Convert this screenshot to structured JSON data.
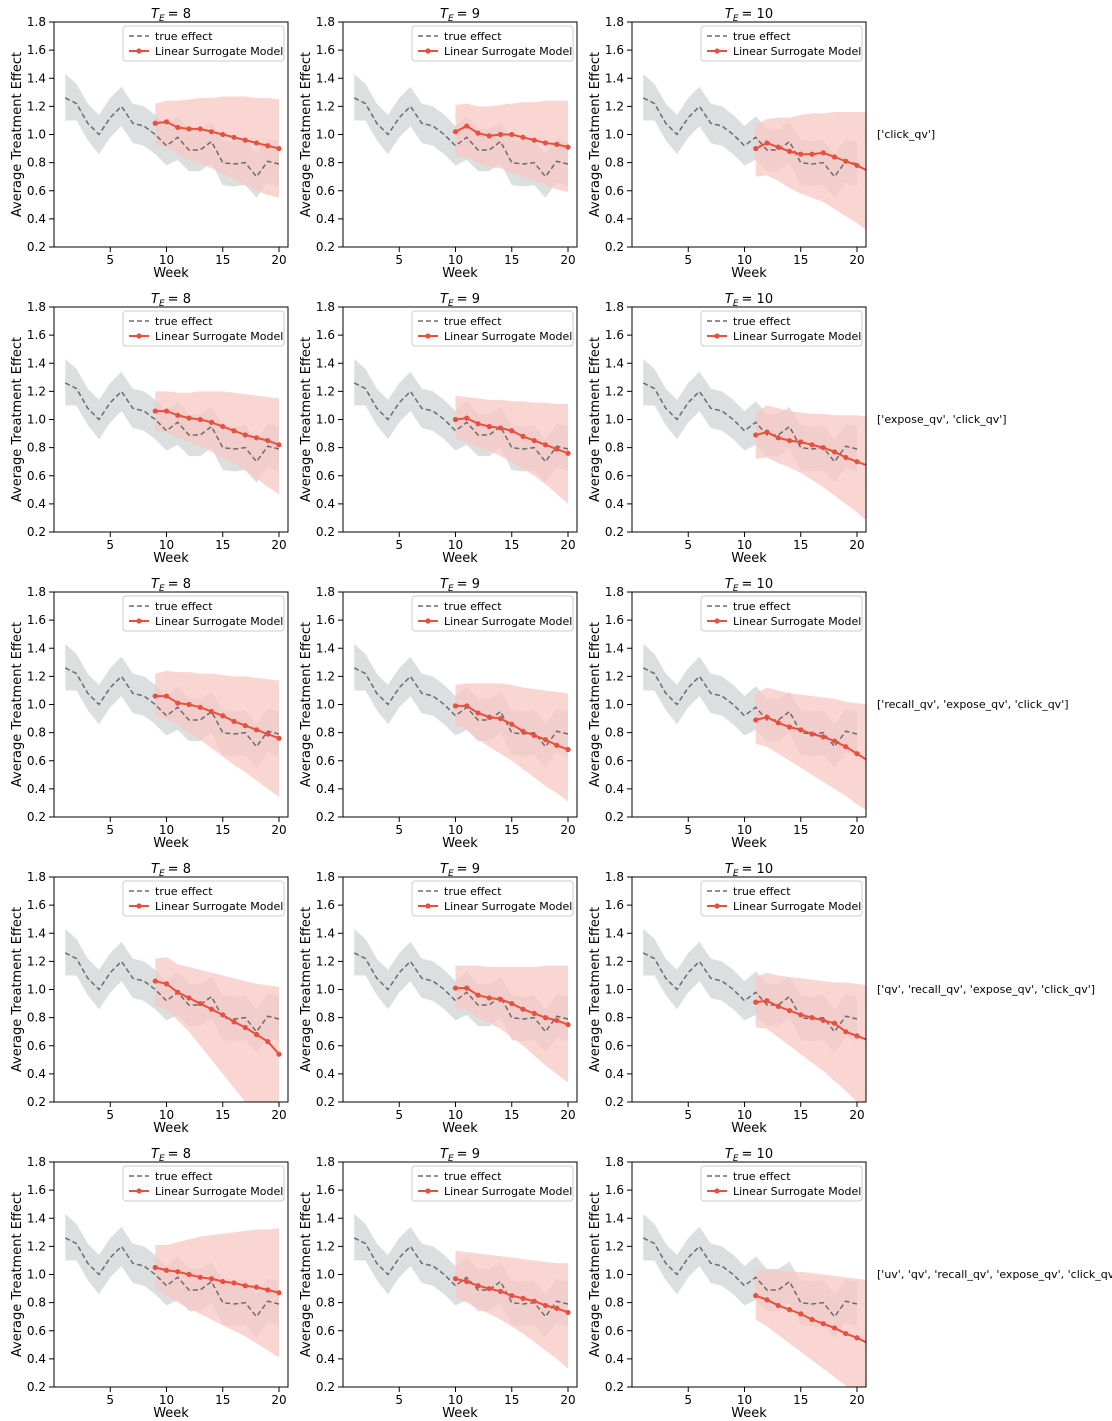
{
  "colors": {
    "true_effect_line": "#6b6b6b",
    "true_effect_band": "#d5d9db",
    "model_line": "#e8503e",
    "model_band": "#f8c8c4",
    "axis": "#000000"
  },
  "chart_data": {
    "type": "line",
    "layout": "5 rows x 3 columns grid of small multiples",
    "xlabel": "Week",
    "ylabel": "Average Treatment Effect",
    "xticks": [
      5,
      10,
      15,
      20
    ],
    "xlim": [
      0,
      20.8
    ],
    "ylim": [
      0.2,
      1.8
    ],
    "yticks": [
      "0.2",
      "0.4",
      "0.6",
      "0.8",
      "1.0",
      "1.2",
      "1.4",
      "1.6",
      "1.8"
    ],
    "legend": {
      "position": "top-right",
      "entries": [
        "true effect",
        "Linear Surrogate Model"
      ]
    },
    "columns": [
      {
        "title_prefix": "T",
        "title_sub": "E",
        "title_value": "= 8",
        "t_e": 8
      },
      {
        "title_prefix": "T",
        "title_sub": "E",
        "title_value": "= 9",
        "t_e": 9
      },
      {
        "title_prefix": "T",
        "title_sub": "E",
        "title_value": "= 10",
        "t_e": 10
      }
    ],
    "true_effect": {
      "name": "true effect",
      "x": [
        1,
        2,
        3,
        4,
        5,
        6,
        7,
        8,
        9,
        10,
        11,
        12,
        13,
        14,
        15,
        16,
        17,
        18,
        19,
        20
      ],
      "y": [
        1.26,
        1.22,
        1.08,
        1.0,
        1.12,
        1.2,
        1.08,
        1.06,
        1.0,
        0.92,
        0.98,
        0.89,
        0.89,
        0.95,
        0.8,
        0.79,
        0.8,
        0.7,
        0.81,
        0.79
      ],
      "lower": [
        1.1,
        1.1,
        0.96,
        0.86,
        0.98,
        1.06,
        0.94,
        0.92,
        0.86,
        0.78,
        0.82,
        0.74,
        0.74,
        0.8,
        0.64,
        0.63,
        0.64,
        0.55,
        0.66,
        0.63
      ],
      "upper": [
        1.43,
        1.36,
        1.22,
        1.14,
        1.26,
        1.34,
        1.22,
        1.2,
        1.14,
        1.06,
        1.13,
        1.04,
        1.04,
        1.09,
        0.96,
        0.95,
        0.96,
        0.86,
        0.97,
        0.95
      ]
    },
    "rows": [
      {
        "label": "['click_qv']",
        "panels": [
          {
            "name": "Linear Surrogate Model",
            "x_start": 9,
            "y": [
              1.08,
              1.09,
              1.05,
              1.04,
              1.04,
              1.02,
              1.0,
              0.98,
              0.96,
              0.94,
              0.92,
              0.9
            ],
            "lower": [
              0.92,
              0.91,
              0.86,
              0.82,
              0.79,
              0.76,
              0.72,
              0.68,
              0.64,
              0.6,
              0.57,
              0.55
            ],
            "upper": [
              1.22,
              1.24,
              1.24,
              1.25,
              1.26,
              1.26,
              1.27,
              1.27,
              1.27,
              1.26,
              1.26,
              1.25
            ]
          },
          {
            "name": "Linear Surrogate Model",
            "x_start": 10,
            "y": [
              1.02,
              1.06,
              1.01,
              0.99,
              1.0,
              1.0,
              0.98,
              0.96,
              0.94,
              0.93,
              0.91
            ],
            "lower": [
              0.84,
              0.84,
              0.8,
              0.77,
              0.76,
              0.73,
              0.7,
              0.67,
              0.64,
              0.61,
              0.59
            ],
            "upper": [
              1.21,
              1.22,
              1.2,
              1.2,
              1.21,
              1.22,
              1.23,
              1.23,
              1.24,
              1.24,
              1.24
            ]
          },
          {
            "name": "Linear Surrogate Model",
            "x_start": 11,
            "y": [
              0.9,
              0.94,
              0.91,
              0.88,
              0.86,
              0.86,
              0.87,
              0.84,
              0.81,
              0.78,
              0.74
            ],
            "lower": [
              0.7,
              0.71,
              0.67,
              0.62,
              0.58,
              0.55,
              0.52,
              0.47,
              0.42,
              0.37,
              0.31
            ],
            "upper": [
              1.07,
              1.11,
              1.12,
              1.12,
              1.14,
              1.15,
              1.15,
              1.16,
              1.16,
              1.16,
              1.16
            ]
          }
        ]
      },
      {
        "label": "['expose_qv', 'click_qv']",
        "panels": [
          {
            "name": "Linear Surrogate Model",
            "x_start": 9,
            "y": [
              1.06,
              1.06,
              1.03,
              1.01,
              1.0,
              0.98,
              0.95,
              0.92,
              0.89,
              0.87,
              0.85,
              0.82
            ],
            "lower": [
              0.92,
              0.91,
              0.87,
              0.84,
              0.81,
              0.77,
              0.73,
              0.69,
              0.64,
              0.58,
              0.52,
              0.47
            ],
            "upper": [
              1.2,
              1.2,
              1.19,
              1.19,
              1.2,
              1.2,
              1.2,
              1.19,
              1.18,
              1.17,
              1.16,
              1.15
            ]
          },
          {
            "name": "Linear Surrogate Model",
            "x_start": 10,
            "y": [
              1.0,
              1.01,
              0.97,
              0.95,
              0.94,
              0.92,
              0.88,
              0.85,
              0.82,
              0.79,
              0.76
            ],
            "lower": [
              0.86,
              0.84,
              0.8,
              0.78,
              0.74,
              0.7,
              0.65,
              0.6,
              0.54,
              0.47,
              0.4
            ],
            "upper": [
              1.17,
              1.16,
              1.15,
              1.14,
              1.14,
              1.13,
              1.13,
              1.12,
              1.12,
              1.11,
              1.11
            ]
          },
          {
            "name": "Linear Surrogate Model",
            "x_start": 11,
            "y": [
              0.89,
              0.91,
              0.87,
              0.85,
              0.84,
              0.82,
              0.8,
              0.77,
              0.73,
              0.7,
              0.67
            ],
            "lower": [
              0.72,
              0.73,
              0.69,
              0.66,
              0.62,
              0.57,
              0.52,
              0.46,
              0.4,
              0.34,
              0.27
            ],
            "upper": [
              1.05,
              1.1,
              1.08,
              1.06,
              1.05,
              1.04,
              1.04,
              1.03,
              1.03,
              1.03,
              1.02
            ]
          }
        ]
      },
      {
        "label": "['recall_qv', 'expose_qv', 'click_qv']",
        "panels": [
          {
            "name": "Linear Surrogate Model",
            "x_start": 9,
            "y": [
              1.06,
              1.06,
              1.01,
              1.0,
              0.98,
              0.95,
              0.92,
              0.88,
              0.85,
              0.82,
              0.79,
              0.76
            ],
            "lower": [
              0.92,
              0.9,
              0.85,
              0.8,
              0.75,
              0.69,
              0.63,
              0.57,
              0.52,
              0.46,
              0.4,
              0.34
            ],
            "upper": [
              1.22,
              1.24,
              1.23,
              1.23,
              1.22,
              1.22,
              1.21,
              1.2,
              1.2,
              1.19,
              1.18,
              1.17
            ]
          },
          {
            "name": "Linear Surrogate Model",
            "x_start": 10,
            "y": [
              0.99,
              0.99,
              0.94,
              0.91,
              0.9,
              0.86,
              0.81,
              0.78,
              0.75,
              0.71,
              0.68
            ],
            "lower": [
              0.85,
              0.82,
              0.75,
              0.7,
              0.65,
              0.6,
              0.54,
              0.48,
              0.42,
              0.37,
              0.31
            ],
            "upper": [
              1.14,
              1.15,
              1.15,
              1.15,
              1.15,
              1.14,
              1.12,
              1.11,
              1.1,
              1.09,
              1.08
            ]
          },
          {
            "name": "Linear Surrogate Model",
            "x_start": 11,
            "y": [
              0.89,
              0.91,
              0.87,
              0.84,
              0.82,
              0.79,
              0.77,
              0.74,
              0.7,
              0.65,
              0.6
            ],
            "lower": [
              0.72,
              0.7,
              0.65,
              0.6,
              0.55,
              0.5,
              0.45,
              0.4,
              0.35,
              0.29,
              0.24
            ],
            "upper": [
              1.08,
              1.12,
              1.1,
              1.08,
              1.07,
              1.06,
              1.05,
              1.04,
              1.02,
              1.01,
              1.0
            ]
          }
        ]
      },
      {
        "label": "['qv', 'recall_qv', 'expose_qv', 'click_qv']",
        "panels": [
          {
            "name": "Linear Surrogate Model",
            "x_start": 9,
            "y": [
              1.06,
              1.04,
              0.98,
              0.94,
              0.9,
              0.86,
              0.82,
              0.77,
              0.73,
              0.68,
              0.63,
              0.54
            ],
            "lower": [
              0.88,
              0.86,
              0.78,
              0.7,
              0.6,
              0.5,
              0.4,
              0.3,
              0.2,
              0.1,
              0.02,
              -0.1
            ],
            "upper": [
              1.22,
              1.23,
              1.18,
              1.16,
              1.14,
              1.12,
              1.1,
              1.08,
              1.06,
              1.04,
              1.03,
              1.02
            ]
          },
          {
            "name": "Linear Surrogate Model",
            "x_start": 10,
            "y": [
              1.01,
              1.01,
              0.96,
              0.94,
              0.93,
              0.9,
              0.86,
              0.83,
              0.8,
              0.78,
              0.75
            ],
            "lower": [
              0.86,
              0.86,
              0.8,
              0.76,
              0.72,
              0.66,
              0.6,
              0.53,
              0.46,
              0.4,
              0.34
            ],
            "upper": [
              1.17,
              1.17,
              1.17,
              1.16,
              1.16,
              1.16,
              1.16,
              1.16,
              1.17,
              1.17,
              1.17
            ]
          },
          {
            "name": "Linear Surrogate Model",
            "x_start": 11,
            "y": [
              0.91,
              0.92,
              0.88,
              0.85,
              0.82,
              0.8,
              0.78,
              0.76,
              0.7,
              0.67,
              0.64
            ],
            "lower": [
              0.73,
              0.72,
              0.66,
              0.6,
              0.54,
              0.48,
              0.42,
              0.35,
              0.28,
              0.2,
              0.12
            ],
            "upper": [
              1.09,
              1.12,
              1.1,
              1.09,
              1.08,
              1.07,
              1.06,
              1.05,
              1.05,
              1.04,
              1.03
            ]
          }
        ]
      },
      {
        "label": "['uv', 'qv', 'recall_qv', 'expose_qv', 'click_qv']",
        "panels": [
          {
            "name": "Linear Surrogate Model",
            "x_start": 9,
            "y": [
              1.05,
              1.03,
              1.02,
              1.0,
              0.98,
              0.97,
              0.95,
              0.94,
              0.92,
              0.91,
              0.89,
              0.87
            ],
            "lower": [
              0.9,
              0.85,
              0.8,
              0.76,
              0.72,
              0.68,
              0.64,
              0.6,
              0.56,
              0.51,
              0.46,
              0.41
            ],
            "upper": [
              1.21,
              1.21,
              1.23,
              1.25,
              1.27,
              1.28,
              1.29,
              1.3,
              1.31,
              1.32,
              1.32,
              1.33
            ]
          },
          {
            "name": "Linear Surrogate Model",
            "x_start": 10,
            "y": [
              0.97,
              0.95,
              0.92,
              0.9,
              0.88,
              0.85,
              0.83,
              0.81,
              0.78,
              0.76,
              0.73
            ],
            "lower": [
              0.83,
              0.8,
              0.76,
              0.72,
              0.68,
              0.63,
              0.58,
              0.52,
              0.46,
              0.4,
              0.33
            ],
            "upper": [
              1.17,
              1.16,
              1.15,
              1.14,
              1.13,
              1.12,
              1.11,
              1.1,
              1.09,
              1.08,
              1.08
            ]
          },
          {
            "name": "Linear Surrogate Model",
            "x_start": 11,
            "y": [
              0.85,
              0.82,
              0.78,
              0.75,
              0.72,
              0.68,
              0.65,
              0.62,
              0.58,
              0.55,
              0.51
            ],
            "lower": [
              0.68,
              0.63,
              0.57,
              0.51,
              0.45,
              0.39,
              0.33,
              0.27,
              0.21,
              0.15,
              0.09
            ],
            "upper": [
              1.03,
              1.03,
              1.03,
              1.02,
              1.02,
              1.01,
              1.0,
              0.99,
              0.98,
              0.97,
              0.96
            ]
          }
        ]
      }
    ]
  }
}
